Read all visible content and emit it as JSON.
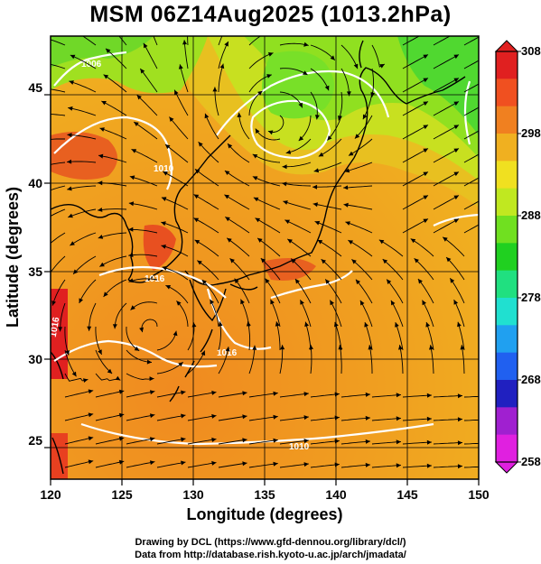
{
  "title": "MSM 06Z14Aug2025 (1013.2hPa)",
  "axes": {
    "xlabel": "Longitude (degrees)",
    "ylabel": "Latitude  (degrees)",
    "x_ticks": [
      "120",
      "125",
      "130",
      "135",
      "140",
      "145",
      "150"
    ],
    "y_ticks": [
      "25",
      "30",
      "35",
      "40",
      "45"
    ]
  },
  "colorbar": {
    "ticks": [
      "308",
      "298",
      "288",
      "278",
      "268",
      "258"
    ],
    "min": 258,
    "max": 308,
    "colors": [
      "#e020e0",
      "#a020d0",
      "#2020c0",
      "#2060f0",
      "#20a0f0",
      "#20e0d0",
      "#20e080",
      "#20d020",
      "#70e020",
      "#c0e820",
      "#f0e020",
      "#f0b020",
      "#f08020",
      "#f05020",
      "#e02020"
    ]
  },
  "isobar_labels": [
    "1006",
    "1016",
    "1016",
    "1016",
    "1010",
    "1010"
  ],
  "credits": {
    "line1": "Drawing by DCL (https://www.gfd-dennou.org/library/dcl/)",
    "line2": "Data from http://database.rish.kyoto-u.ac.jp/arch/jmadata/"
  }
}
